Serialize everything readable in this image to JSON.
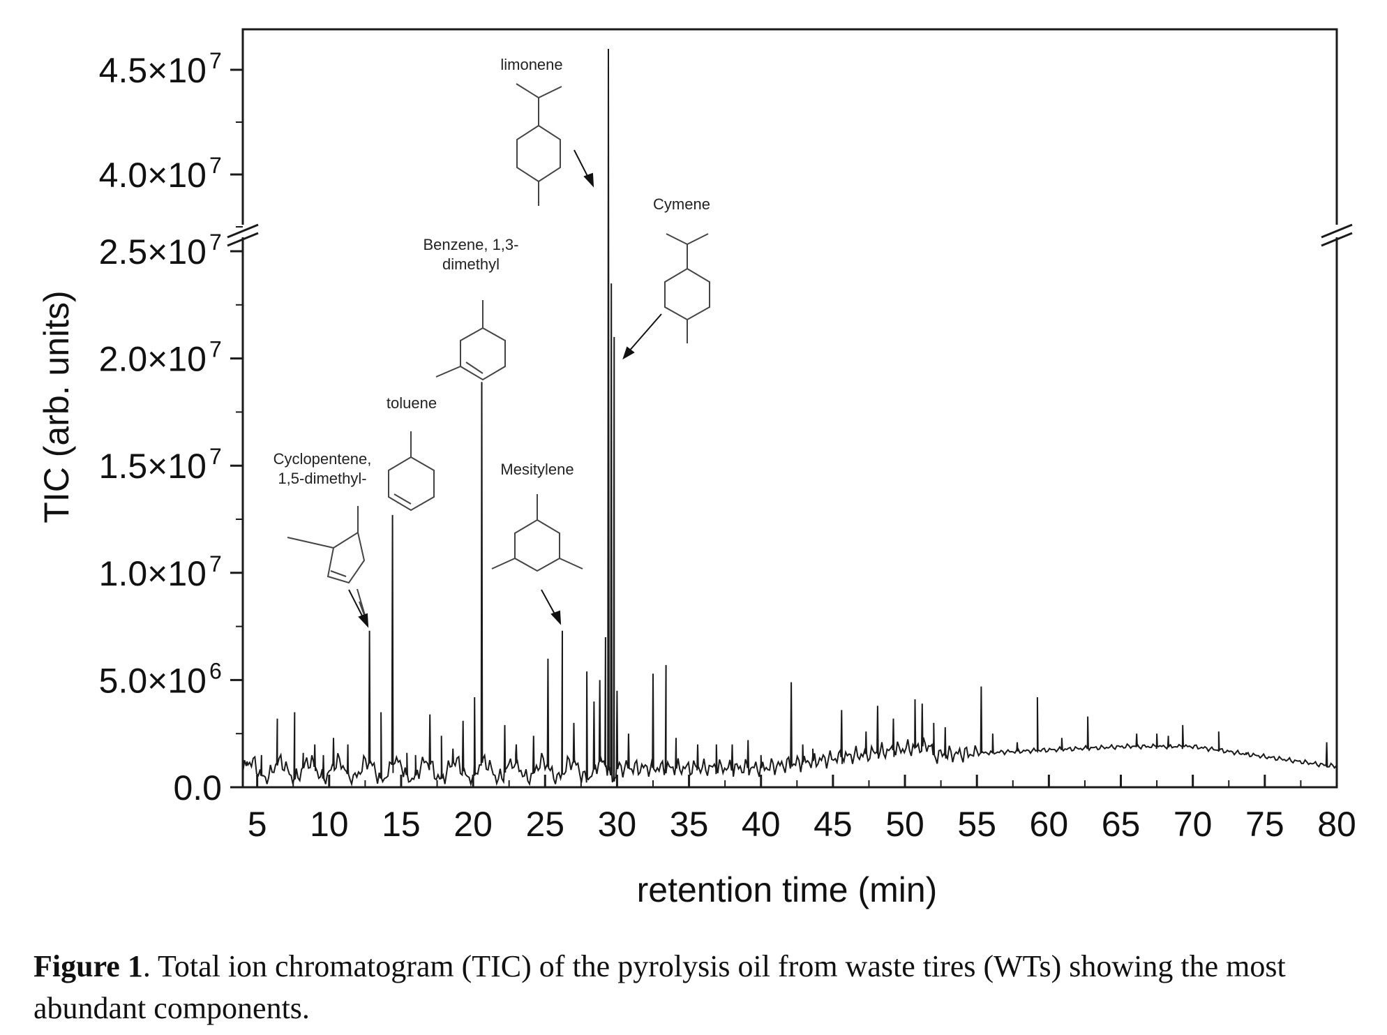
{
  "chart_data": {
    "type": "line",
    "xlabel": "retention time (min)",
    "ylabel": "TIC (arb. units)",
    "xlim": [
      4,
      80
    ],
    "x_ticks": [
      "5",
      "10",
      "15",
      "20",
      "25",
      "30",
      "35",
      "40",
      "45",
      "50",
      "55",
      "60",
      "65",
      "70",
      "75",
      "80"
    ],
    "y_axis_break": {
      "lower_range": [
        0,
        25000000
      ],
      "upper_range": [
        37500000,
        47000000
      ]
    },
    "y_ticks_lower": [
      {
        "value": 0,
        "label": "0.0"
      },
      {
        "value": 5000000,
        "label": "5.0×10",
        "exp": "6"
      },
      {
        "value": 10000000,
        "label": "1.0×10",
        "exp": "7"
      },
      {
        "value": 15000000,
        "label": "1.5×10",
        "exp": "7"
      },
      {
        "value": 20000000,
        "label": "2.0×10",
        "exp": "7"
      },
      {
        "value": 25000000,
        "label": "2.5×10",
        "exp": "7"
      }
    ],
    "y_ticks_upper": [
      {
        "value": 40000000,
        "label": "4.0×10",
        "exp": "7"
      },
      {
        "value": 45000000,
        "label": "4.5×10",
        "exp": "7"
      }
    ],
    "peaks": [
      [
        4.3,
        1200000
      ],
      [
        5.3,
        1500000
      ],
      [
        6.4,
        3200000
      ],
      [
        7.6,
        3500000
      ],
      [
        8.2,
        1600000
      ],
      [
        9.0,
        2000000
      ],
      [
        9.6,
        1500000
      ],
      [
        10.3,
        2300000
      ],
      [
        11.3,
        2000000
      ],
      [
        12.8,
        7300000
      ],
      [
        13.6,
        3500000
      ],
      [
        14.4,
        12700000
      ],
      [
        15.4,
        1600000
      ],
      [
        16.0,
        1500000
      ],
      [
        17.0,
        3400000
      ],
      [
        17.8,
        2400000
      ],
      [
        18.6,
        1800000
      ],
      [
        19.3,
        3100000
      ],
      [
        20.1,
        4200000
      ],
      [
        20.6,
        18900000
      ],
      [
        22.2,
        2900000
      ],
      [
        23.0,
        2000000
      ],
      [
        24.2,
        2400000
      ],
      [
        25.2,
        6000000
      ],
      [
        26.2,
        7300000
      ],
      [
        27.0,
        3000000
      ],
      [
        27.9,
        5400000
      ],
      [
        28.4,
        4000000
      ],
      [
        28.8,
        5000000
      ],
      [
        29.2,
        7000000
      ],
      [
        29.4,
        46000000
      ],
      [
        29.6,
        23500000
      ],
      [
        29.8,
        21000000
      ],
      [
        30.0,
        4500000
      ],
      [
        30.8,
        2500000
      ],
      [
        32.5,
        5300000
      ],
      [
        33.4,
        5700000
      ],
      [
        34.1,
        2300000
      ],
      [
        35.6,
        2000000
      ],
      [
        36.9,
        2000000
      ],
      [
        38.0,
        2000000
      ],
      [
        39.1,
        2200000
      ],
      [
        40.0,
        1500000
      ],
      [
        42.1,
        4900000
      ],
      [
        42.9,
        2000000
      ],
      [
        43.6,
        1800000
      ],
      [
        45.6,
        3600000
      ],
      [
        47.3,
        2600000
      ],
      [
        48.1,
        3800000
      ],
      [
        49.2,
        3200000
      ],
      [
        50.7,
        4100000
      ],
      [
        51.2,
        3900000
      ],
      [
        52.0,
        3000000
      ],
      [
        52.8,
        2800000
      ],
      [
        55.3,
        4700000
      ],
      [
        56.1,
        2500000
      ],
      [
        57.8,
        2100000
      ],
      [
        59.2,
        4200000
      ],
      [
        60.9,
        2300000
      ],
      [
        62.7,
        3300000
      ],
      [
        66.1,
        2500000
      ],
      [
        67.5,
        2500000
      ],
      [
        68.3,
        2400000
      ],
      [
        69.3,
        2900000
      ],
      [
        71.8,
        2600000
      ],
      [
        73.7,
        1600000
      ],
      [
        79.3,
        2100000
      ]
    ],
    "annotations": [
      {
        "name": "Cyclopentene,",
        "line2": "1,5-dimethyl-",
        "x": 12.8
      },
      {
        "name": "toluene",
        "x": 14.4
      },
      {
        "name": "Benzene, 1,3-",
        "line2": "dimethyl",
        "x": 20.6
      },
      {
        "name": "Mesitylene",
        "x": 26.2
      },
      {
        "name": "limonene",
        "x": 29.4
      },
      {
        "name": "Cymene",
        "x": 29.6
      }
    ]
  },
  "caption": {
    "label": "Figure 1",
    "text": ". Total ion chromatogram (TIC) of the pyrolysis oil from waste tires (WTs) showing the most abundant components."
  },
  "colors": {
    "line": "#1a1a1a",
    "axis": "#1a1a1a"
  }
}
